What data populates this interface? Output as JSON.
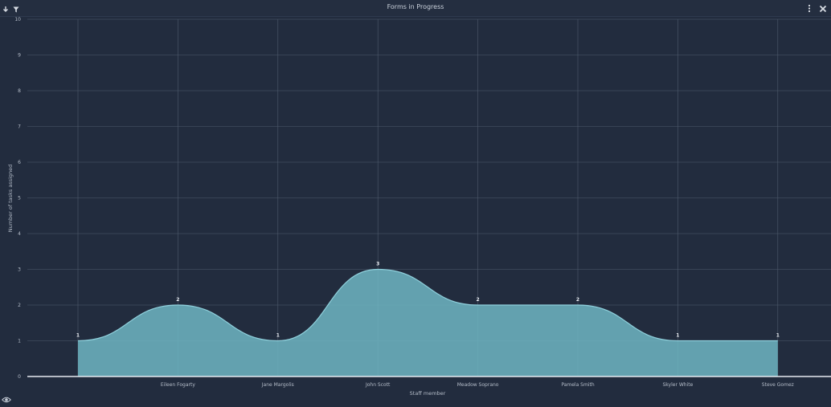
{
  "window": {
    "title": "Forms in Progress",
    "icons": [
      "download-icon",
      "filter-icon",
      "kebab-menu-icon",
      "close-icon",
      "eye-icon"
    ]
  },
  "colors": {
    "background": "#222c3e",
    "area_fill": "#6fb6c3",
    "area_stroke": "#8fd0dc",
    "grid": "#4f5a6c"
  },
  "chart_data": {
    "type": "area",
    "title": "Forms in Progress",
    "xlabel": "Staff member",
    "ylabel": "Number of tasks assigned",
    "categories": [
      "",
      "Eileen Fogarty",
      "Jane Margolis",
      "John Scott",
      "Meadow Soprano",
      "Pamela Smith",
      "Skyler White",
      "Steve Gomez"
    ],
    "values": [
      1,
      2,
      1,
      3,
      2,
      2,
      1,
      1
    ],
    "ylim": [
      0,
      10
    ],
    "yticks": [
      0,
      1,
      2,
      3,
      4,
      5,
      6,
      7,
      8,
      9,
      10
    ],
    "smooth": true,
    "data_labels": true,
    "grid": true,
    "legend": "none"
  }
}
